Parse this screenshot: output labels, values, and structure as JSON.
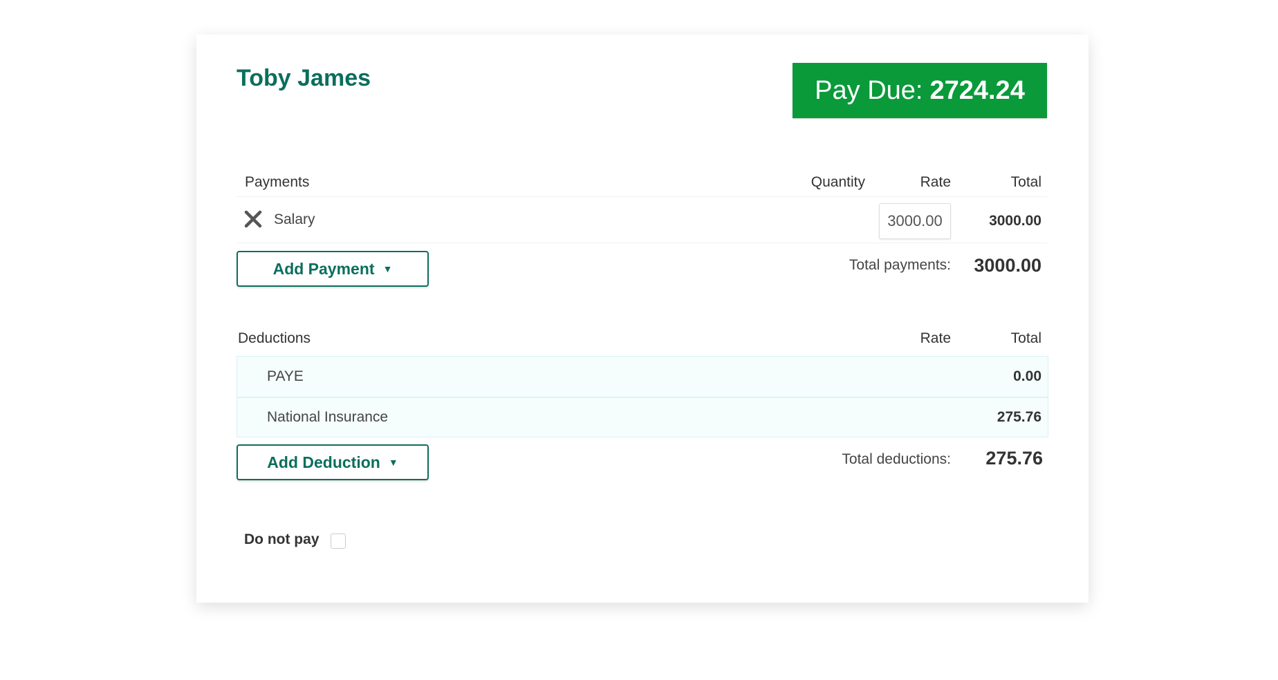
{
  "employee": {
    "name": "Toby James"
  },
  "pay_due": {
    "label": "Pay Due:",
    "value": "2724.24",
    "color": "#0a9a3a"
  },
  "payments": {
    "header": "Payments",
    "columns": {
      "quantity": "Quantity",
      "rate": "Rate",
      "total": "Total"
    },
    "items": [
      {
        "name": "Salary",
        "rate": "3000.00",
        "total": "3000.00",
        "remove_icon": "close-icon"
      }
    ],
    "add_label": "Add Payment",
    "total_label": "Total payments:",
    "total_value": "3000.00"
  },
  "deductions": {
    "header": "Deductions",
    "columns": {
      "rate": "Rate",
      "total": "Total"
    },
    "items": [
      {
        "name": "PAYE",
        "total": "0.00"
      },
      {
        "name": "National Insurance",
        "total": "275.76"
      }
    ],
    "add_label": "Add Deduction",
    "total_label": "Total deductions:",
    "total_value": "275.76"
  },
  "do_not_pay": {
    "label": "Do not pay",
    "checked": false
  }
}
